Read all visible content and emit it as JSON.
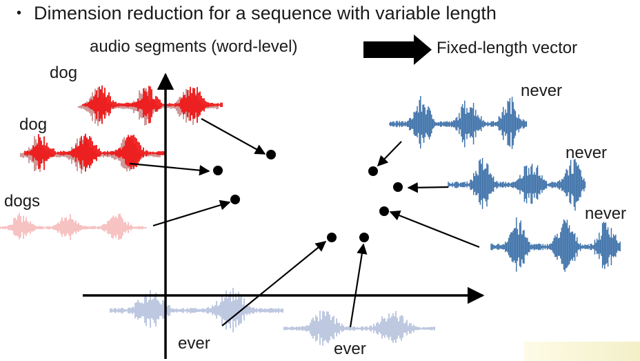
{
  "slide": {
    "bullet": "•",
    "title": "Dimension reduction for a sequence with variable length",
    "input_label": "audio segments (word-level)",
    "output_label": "Fixed-length vector"
  },
  "colors": {
    "dog": "#ee1111",
    "dog_shadow": "#a03030",
    "dogs": "#f6b5b5",
    "never": "#3a6fa8",
    "ever": "#b4c0dc",
    "ink": "#000000"
  },
  "words": {
    "dog1": "dog",
    "dog2": "dog",
    "dogs": "dogs",
    "never1": "never",
    "never2": "never",
    "never3": "never",
    "ever1": "ever",
    "ever2": "ever"
  }
}
